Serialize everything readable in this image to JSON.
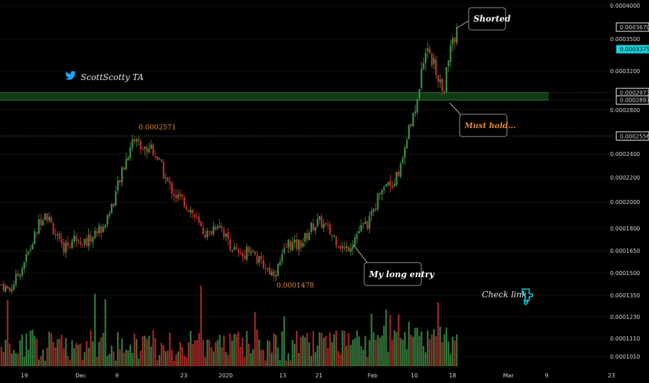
{
  "brand": {
    "handle": "ScottScotty TA",
    "icon": "twitter-bird-icon",
    "icon_color": "#1da1f2"
  },
  "colors": {
    "up": "#3c8a44",
    "down": "#b5302a",
    "zone": "#0f3a12",
    "zone_edge": "#2f7d35",
    "highlight": "#18d2de",
    "text": "#d6d6d6",
    "orange": "#e08a2a"
  },
  "callouts": {
    "shorted": "Shorted",
    "must_hold": "Must hold...",
    "long_entry": "My long entry",
    "check_link": "Check link",
    "check_icon": "pointing-down-hand-icon"
  },
  "price_annotations": {
    "high": "0.0002571",
    "low": "0.0001478"
  },
  "price_axis": {
    "ticks": [
      "0.0004000",
      "0.0003500",
      "0.0003200",
      "0.0002800",
      "0.0002400",
      "0.0002200",
      "0.0002000",
      "0.0001800",
      "0.0001650",
      "0.0001500",
      "0.0001350",
      "0.0001230",
      "0.0001110",
      "0.0001010"
    ],
    "markers": [
      {
        "label": "0.0003670",
        "style": "boxed"
      },
      {
        "label": "0.0003375",
        "style": "highlight"
      },
      {
        "label": "0.0002973",
        "style": "boxed"
      },
      {
        "label": "0.0002897",
        "style": "boxed"
      },
      {
        "label": "0.0002556",
        "style": "boxed"
      }
    ]
  },
  "time_axis": {
    "ticks": [
      "19",
      "Dec",
      "9",
      "23",
      "2020",
      "13",
      "21",
      "Feb",
      "10",
      "18",
      "Mar",
      "9",
      "23"
    ]
  },
  "chart_data": {
    "type": "candlestick",
    "scale": "log",
    "ylim": [
      0.0001,
      0.0004
    ],
    "support_zone": [
      0.0002897,
      0.0002973
    ],
    "support_line": 0.0002556,
    "key_levels": {
      "high": 0.0002571,
      "low": 0.0001478,
      "last": 0.0003375,
      "top": 0.000367
    },
    "close_path": [
      [
        0,
        0.000142
      ],
      [
        6,
        0.000138
      ],
      [
        14,
        0.000152
      ],
      [
        22,
        0.000168
      ],
      [
        28,
        0.000185
      ],
      [
        32,
        0.000193
      ],
      [
        38,
        0.00018
      ],
      [
        44,
        0.000166
      ],
      [
        50,
        0.00017
      ],
      [
        56,
        0.000175
      ],
      [
        62,
        0.00017
      ],
      [
        68,
        0.000176
      ],
      [
        75,
        0.000182
      ],
      [
        82,
        0.0002
      ],
      [
        88,
        0.000222
      ],
      [
        94,
        0.000245
      ],
      [
        98,
        0.000255
      ],
      [
        104,
        0.000243
      ],
      [
        110,
        0.000247
      ],
      [
        116,
        0.000232
      ],
      [
        122,
        0.000215
      ],
      [
        128,
        0.000205
      ],
      [
        134,
        0.0002
      ],
      [
        140,
        0.000192
      ],
      [
        146,
        0.00018
      ],
      [
        152,
        0.000175
      ],
      [
        156,
        0.000182
      ],
      [
        160,
        0.000185
      ],
      [
        164,
        0.000175
      ],
      [
        170,
        0.000166
      ],
      [
        176,
        0.00016
      ],
      [
        182,
        0.000168
      ],
      [
        188,
        0.000158
      ],
      [
        194,
        0.000154
      ],
      [
        198,
        0.00015
      ],
      [
        202,
        0.000152
      ],
      [
        206,
        0.00016
      ],
      [
        210,
        0.00017
      ],
      [
        216,
        0.000168
      ],
      [
        222,
        0.000172
      ],
      [
        228,
        0.000182
      ],
      [
        234,
        0.000185
      ],
      [
        240,
        0.000178
      ],
      [
        246,
        0.000172
      ],
      [
        252,
        0.000165
      ],
      [
        258,
        0.000172
      ],
      [
        262,
        0.000178
      ],
      [
        266,
        0.000182
      ],
      [
        270,
        0.000185
      ],
      [
        274,
        0.000196
      ],
      [
        278,
        0.000212
      ],
      [
        282,
        0.000216
      ],
      [
        286,
        0.000215
      ],
      [
        290,
        0.000222
      ],
      [
        294,
        0.000232
      ],
      [
        298,
        0.000258
      ],
      [
        302,
        0.000272
      ],
      [
        306,
        0.0003
      ],
      [
        309,
        0.000325
      ],
      [
        312,
        0.000345
      ],
      [
        316,
        0.00033
      ],
      [
        320,
        0.00031
      ],
      [
        324,
        0.000296
      ],
      [
        328,
        0.00033
      ],
      [
        331,
        0.000345
      ],
      [
        334,
        0.000367
      ]
    ]
  }
}
